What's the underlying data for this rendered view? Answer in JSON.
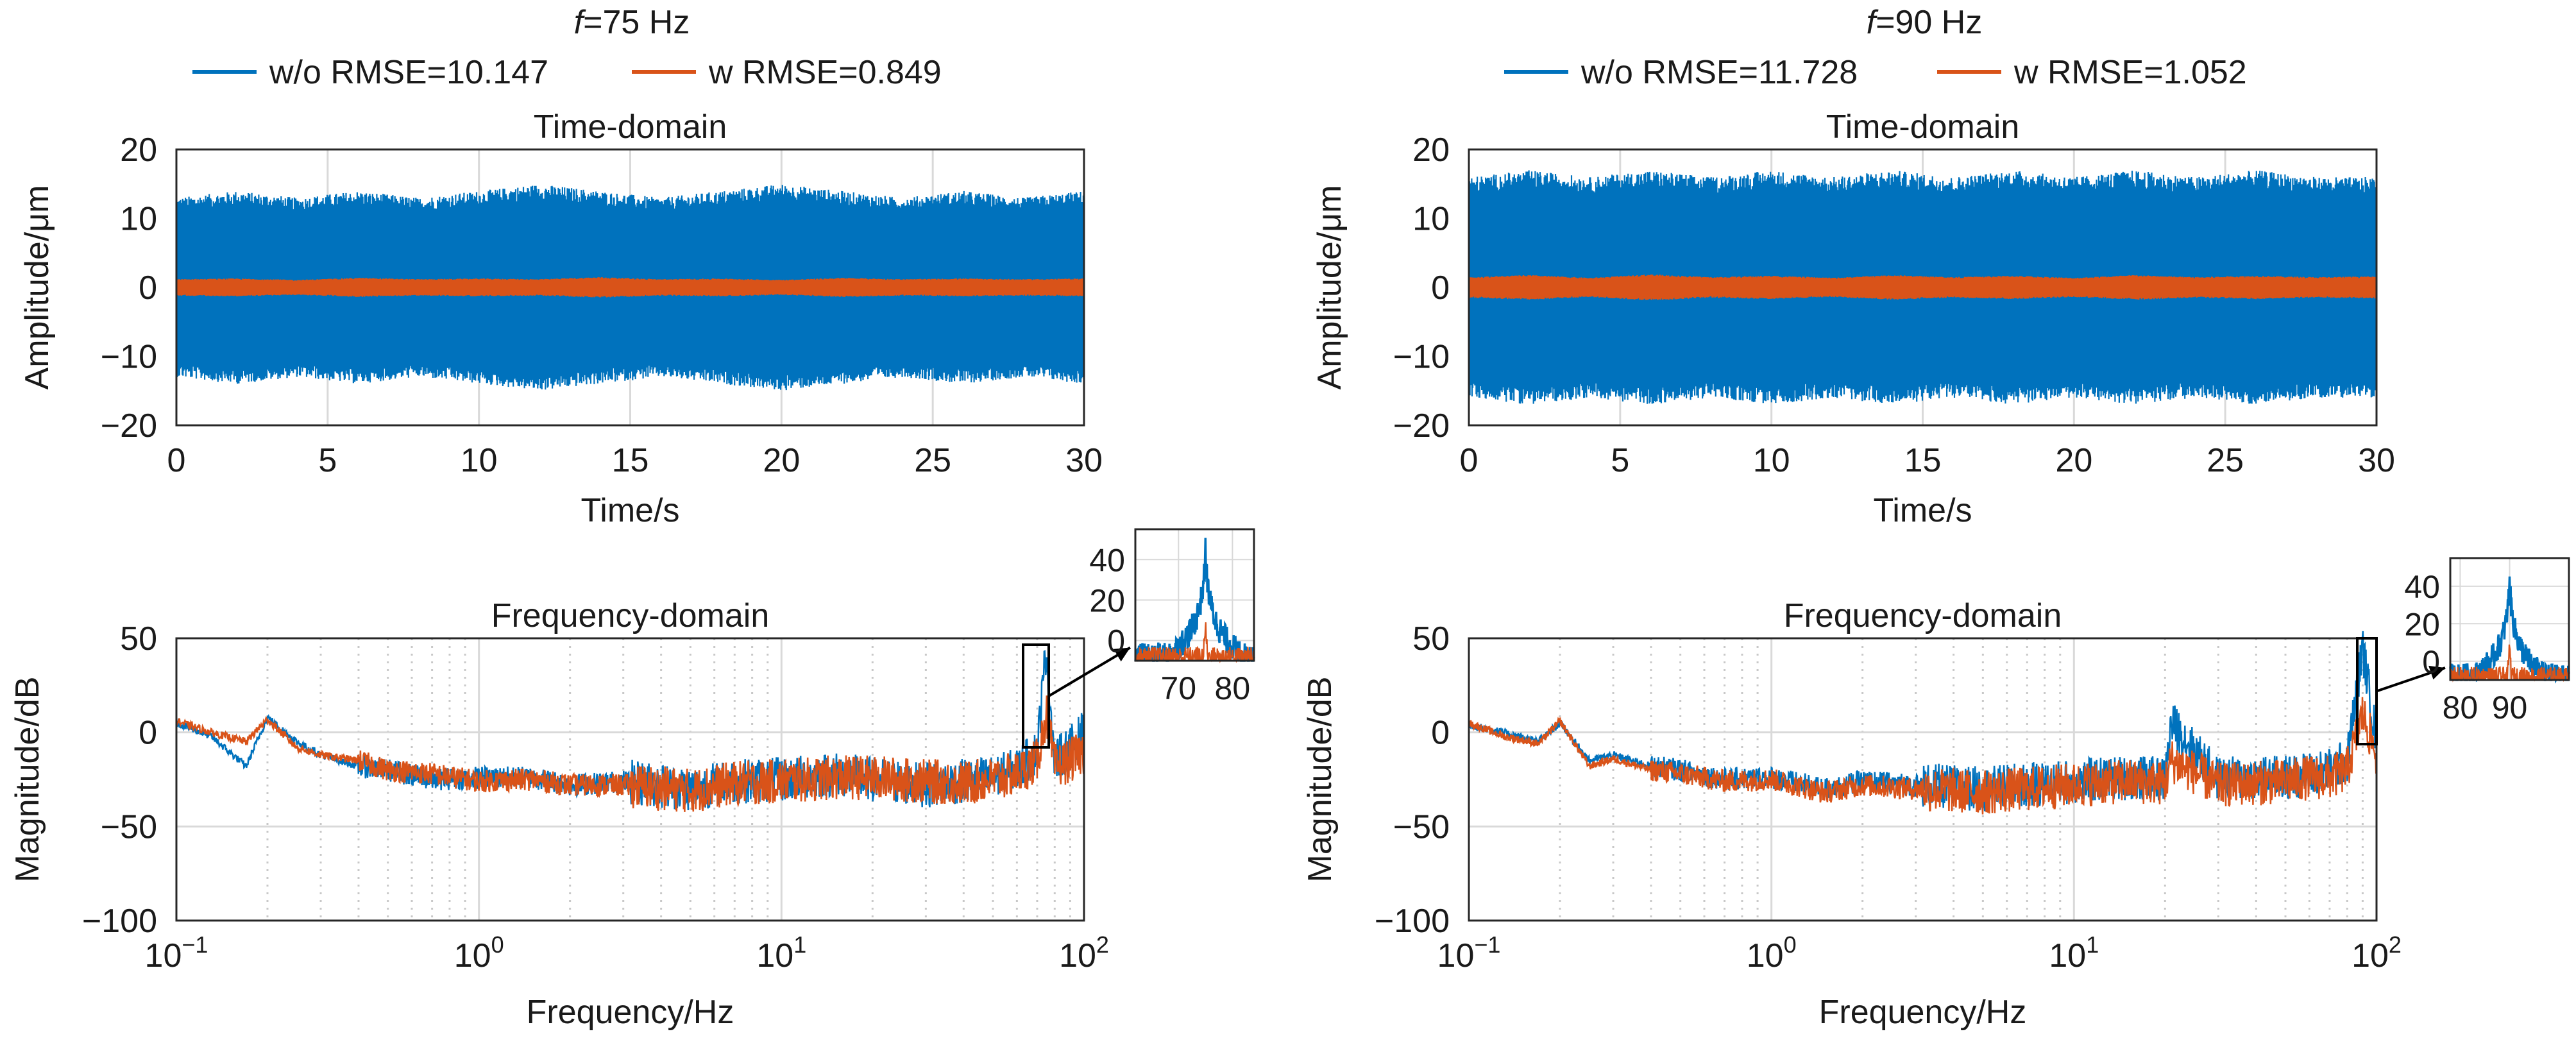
{
  "colors": {
    "without": "#0072BD",
    "with": "#D95319",
    "grid": "#d9d9d9",
    "axis": "#262626"
  },
  "panels": [
    {
      "f_symbol": "f",
      "f_rest": "=75 Hz",
      "legend": [
        {
          "label": "w/o RMSE=10.147",
          "color": "#0072BD"
        },
        {
          "label": "w RMSE=0.849",
          "color": "#D95319"
        }
      ]
    },
    {
      "f_symbol": "f",
      "f_rest": "=90 Hz",
      "legend": [
        {
          "label": "w/o RMSE=11.728",
          "color": "#0072BD"
        },
        {
          "label": "w RMSE=1.052",
          "color": "#D95319"
        }
      ]
    }
  ],
  "chart_data": [
    {
      "type": "line",
      "title": "Time-domain",
      "xlabel": "Time/s",
      "ylabel": "Amplitude/μm",
      "xlim": [
        0,
        30
      ],
      "ylim": [
        -20,
        20
      ],
      "xticks": [
        0,
        5,
        10,
        15,
        20,
        25,
        30
      ],
      "yticks": [
        -20,
        -10,
        0,
        10,
        20
      ],
      "grid": true,
      "series": [
        {
          "name": "w/o",
          "envelope_upper": [
            13,
            14,
            13,
            14,
            13,
            14,
            15,
            14,
            13,
            14,
            15,
            14,
            13,
            14,
            13,
            14
          ],
          "envelope_lower": [
            -13,
            -14,
            -13,
            -14,
            -13,
            -14,
            -15,
            -14,
            -13,
            -14,
            -15,
            -14,
            -13,
            -14,
            -13,
            -14
          ]
        },
        {
          "name": "w",
          "envelope_upper": [
            1.2,
            1.3,
            1.1,
            1.4,
            1.2,
            1.3,
            1.2,
            1.5,
            1.2,
            1.3,
            1.1,
            1.4,
            1.2,
            1.3,
            1.2,
            1.3
          ],
          "envelope_lower": [
            -1.2,
            -1.3,
            -1.1,
            -1.4,
            -1.2,
            -1.3,
            -1.2,
            -1.5,
            -1.2,
            -1.3,
            -1.1,
            -1.4,
            -1.2,
            -1.3,
            -1.2,
            -1.3
          ]
        }
      ]
    },
    {
      "type": "line",
      "title": "Time-domain",
      "xlabel": "Time/s",
      "ylabel": "Amplitude/μm",
      "xlim": [
        0,
        30
      ],
      "ylim": [
        -20,
        20
      ],
      "xticks": [
        0,
        5,
        10,
        15,
        20,
        25,
        30
      ],
      "yticks": [
        -20,
        -10,
        0,
        10,
        20
      ],
      "grid": true,
      "series": [
        {
          "name": "w/o",
          "envelope_upper": [
            16,
            17,
            16,
            17,
            16,
            17,
            16,
            17,
            16,
            17,
            16,
            17,
            16,
            17,
            16,
            16
          ],
          "envelope_lower": [
            -16,
            -17,
            -16,
            -17,
            -16,
            -17,
            -16,
            -17,
            -16,
            -17,
            -16,
            -17,
            -16,
            -17,
            -16,
            -16
          ]
        },
        {
          "name": "w",
          "envelope_upper": [
            1.5,
            1.8,
            1.4,
            1.9,
            1.5,
            1.7,
            1.4,
            1.8,
            1.5,
            1.7,
            1.4,
            1.8,
            1.5,
            1.7,
            1.5,
            1.6
          ],
          "envelope_lower": [
            -1.5,
            -1.8,
            -1.4,
            -1.9,
            -1.5,
            -1.7,
            -1.4,
            -1.8,
            -1.5,
            -1.7,
            -1.4,
            -1.8,
            -1.5,
            -1.7,
            -1.5,
            -1.6
          ]
        }
      ]
    },
    {
      "type": "line",
      "title": "Frequency-domain",
      "xlabel": "Frequency/Hz",
      "ylabel": "Magnitude/dB",
      "xscale": "log",
      "xlim": [
        0.1,
        100
      ],
      "ylim": [
        -100,
        50
      ],
      "xtick_labels": [
        "10",
        "10",
        "10",
        "10"
      ],
      "xtick_exponents": [
        "−1",
        "0",
        "1",
        "2"
      ],
      "yticks": [
        -100,
        -50,
        0,
        50
      ],
      "grid": true,
      "series": [
        {
          "name": "w/o",
          "x": [
            0.1,
            0.13,
            0.17,
            0.2,
            0.25,
            0.3,
            0.4,
            0.5,
            0.7,
            1,
            1.5,
            2,
            3,
            5,
            7,
            10,
            15,
            20,
            30,
            40,
            50,
            60,
            70,
            75,
            80,
            90,
            100
          ],
          "y": [
            5,
            -2,
            -18,
            8,
            -5,
            -12,
            -18,
            -20,
            -25,
            -24,
            -24,
            -28,
            -26,
            -30,
            -26,
            -25,
            -22,
            -25,
            -28,
            -26,
            -24,
            -20,
            -10,
            45,
            -15,
            -8,
            0
          ]
        },
        {
          "name": "w",
          "x": [
            0.1,
            0.13,
            0.17,
            0.2,
            0.25,
            0.3,
            0.4,
            0.5,
            0.7,
            1,
            1.5,
            2,
            3,
            5,
            7,
            10,
            15,
            20,
            30,
            40,
            50,
            60,
            70,
            75,
            80,
            90,
            100
          ],
          "y": [
            6,
            0,
            -5,
            7,
            -8,
            -12,
            -15,
            -20,
            -22,
            -26,
            -25,
            -28,
            -28,
            -31,
            -27,
            -26,
            -24,
            -24,
            -26,
            -27,
            -25,
            -22,
            -15,
            10,
            -18,
            -15,
            -10
          ]
        }
      ],
      "inset": {
        "xlim": [
          62,
          84
        ],
        "ylim": [
          -10,
          55
        ],
        "xticks": [
          70,
          80
        ],
        "yticks": [
          0,
          20,
          40
        ],
        "zoom_xlim": [
          62,
          84
        ],
        "zoom_ylim": [
          -10,
          55
        ]
      }
    },
    {
      "type": "line",
      "title": "Frequency-domain",
      "xlabel": "Frequency/Hz",
      "ylabel": "Magnitude/dB",
      "xscale": "log",
      "xlim": [
        0.1,
        100
      ],
      "ylim": [
        -100,
        50
      ],
      "xtick_labels": [
        "10",
        "10",
        "10",
        "10"
      ],
      "xtick_exponents": [
        "−1",
        "0",
        "1",
        "2"
      ],
      "yticks": [
        -100,
        -50,
        0,
        50
      ],
      "grid": true,
      "series": [
        {
          "name": "w/o",
          "x": [
            0.1,
            0.13,
            0.17,
            0.2,
            0.25,
            0.3,
            0.4,
            0.5,
            0.7,
            1,
            1.5,
            2,
            3,
            5,
            7,
            10,
            15,
            20,
            21,
            30,
            40,
            50,
            60,
            70,
            80,
            90,
            100
          ],
          "y": [
            4,
            0,
            -5,
            5,
            -15,
            -12,
            -18,
            -20,
            -25,
            -24,
            -30,
            -26,
            -28,
            -30,
            -28,
            -26,
            -24,
            -25,
            5,
            -25,
            -24,
            -24,
            -22,
            -20,
            -15,
            45,
            -5
          ]
        },
        {
          "name": "w",
          "x": [
            0.1,
            0.13,
            0.17,
            0.2,
            0.25,
            0.3,
            0.4,
            0.5,
            0.7,
            1,
            1.5,
            2,
            3,
            5,
            7,
            10,
            15,
            20,
            21,
            30,
            40,
            50,
            60,
            70,
            80,
            90,
            100
          ],
          "y": [
            5,
            -2,
            -6,
            6,
            -18,
            -14,
            -20,
            -22,
            -26,
            -25,
            -32,
            -28,
            -30,
            -32,
            -30,
            -28,
            -26,
            -27,
            -15,
            -28,
            -27,
            -26,
            -24,
            -24,
            -20,
            10,
            -12
          ]
        }
      ],
      "inset": {
        "xlim": [
          78,
          102
        ],
        "ylim": [
          -10,
          55
        ],
        "xticks": [
          80,
          90
        ],
        "yticks": [
          0,
          20,
          40
        ],
        "zoom_xlim": [
          80,
          102
        ],
        "zoom_ylim": [
          -10,
          55
        ]
      }
    }
  ]
}
